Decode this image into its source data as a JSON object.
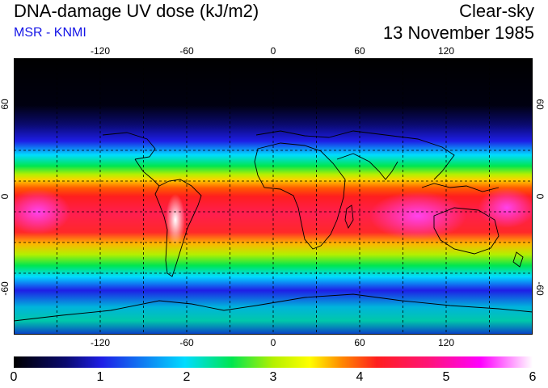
{
  "header": {
    "title": "DNA-damage UV dose (kJ/m2)",
    "source": "MSR - KNMI",
    "condition": "Clear-sky",
    "date": "13 November 1985"
  },
  "colors": {
    "source_text": "#1414e6",
    "land_outline": "#000000",
    "gridline": "#000000"
  },
  "map": {
    "projection": "equirectangular",
    "lon_range": [
      -180,
      180
    ],
    "lat_range": [
      -90,
      90
    ],
    "lon_ticks": [
      "-120",
      "-60",
      "0",
      "60",
      "120"
    ],
    "lat_ticks_left": [
      "60",
      "0",
      "-60"
    ],
    "lat_ticks_right": [
      "60",
      "0",
      "-60"
    ],
    "gridlines": "dashed every 20 degrees"
  },
  "colorbar": {
    "labels": [
      "0",
      "1",
      "2",
      "3",
      "4",
      "5",
      "6"
    ],
    "colors": [
      "#000000",
      "#0a0a6e",
      "#1e1ee6",
      "#00dcff",
      "#00e650",
      "#b4f000",
      "#ffff00",
      "#ff8c00",
      "#ff1e1e",
      "#ff1478",
      "#ff00ff",
      "#ffffff"
    ]
  }
}
